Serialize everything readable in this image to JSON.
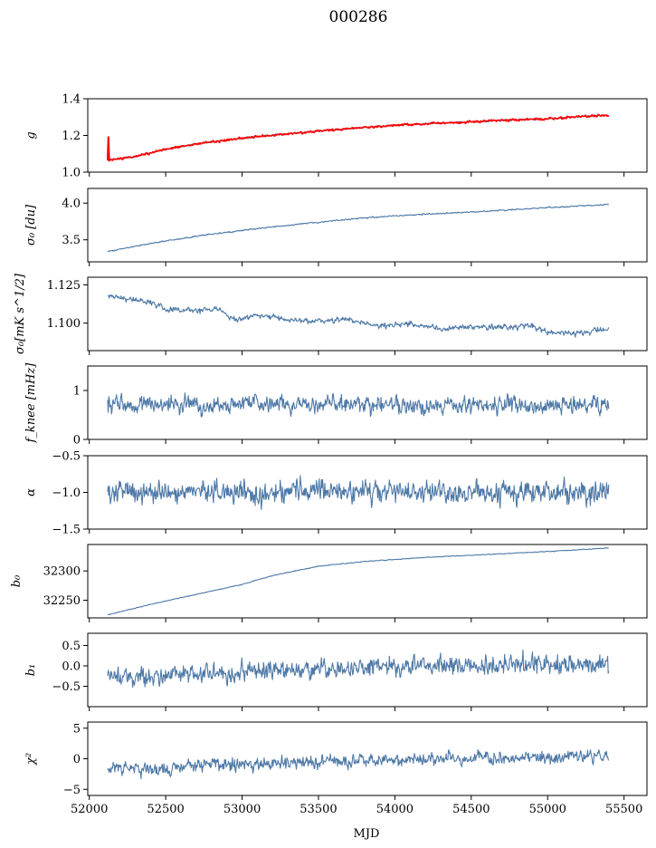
{
  "figure": {
    "title": "000286",
    "xlabel": "MJD"
  },
  "chart_data": [
    {
      "type": "line",
      "ylabel": "g",
      "ylim": [
        1.0,
        1.4
      ],
      "yticks": [
        "1.0",
        "1.2",
        "1.4"
      ],
      "xlim": [
        51990,
        55650
      ],
      "series": [
        {
          "color": "#4e79a7",
          "x_start": 52120,
          "x_end": 55400,
          "points": [
            [
              52120,
              1.065
            ],
            [
              52300,
              1.085
            ],
            [
              52500,
              1.125
            ],
            [
              52750,
              1.16
            ],
            [
              53000,
              1.185
            ],
            [
              53250,
              1.205
            ],
            [
              53500,
              1.225
            ],
            [
              53750,
              1.24
            ],
            [
              54000,
              1.255
            ],
            [
              54250,
              1.265
            ],
            [
              54500,
              1.275
            ],
            [
              54750,
              1.285
            ],
            [
              55000,
              1.29
            ],
            [
              55250,
              1.305
            ],
            [
              55400,
              1.31
            ]
          ],
          "noise": 0.003
        },
        {
          "color": "#ff0000",
          "x_start": 52120,
          "x_end": 55400,
          "points": [
            [
              52120,
              1.065
            ],
            [
              52300,
              1.085
            ],
            [
              52500,
              1.125
            ],
            [
              52750,
              1.16
            ],
            [
              53000,
              1.185
            ],
            [
              53250,
              1.205
            ],
            [
              53500,
              1.225
            ],
            [
              53750,
              1.24
            ],
            [
              54000,
              1.255
            ],
            [
              54250,
              1.265
            ],
            [
              54500,
              1.275
            ],
            [
              54750,
              1.285
            ],
            [
              55000,
              1.29
            ],
            [
              55250,
              1.305
            ],
            [
              55400,
              1.31
            ]
          ],
          "noise": 0.004,
          "spike": [
            [
              52120,
              1.065
            ],
            [
              52125,
              1.195
            ],
            [
              52130,
              1.07
            ]
          ]
        }
      ]
    },
    {
      "type": "line",
      "ylabel": "σ₀ [du]",
      "ylim": [
        3.2,
        4.2
      ],
      "yticks": [
        "3.5",
        "4.0"
      ],
      "ytick_values": [
        3.5,
        4.0
      ],
      "xlim": [
        51990,
        55650
      ],
      "series": [
        {
          "color": "#4e79a7",
          "x_start": 52120,
          "x_end": 55400,
          "points": [
            [
              52120,
              3.34
            ],
            [
              52400,
              3.45
            ],
            [
              52700,
              3.55
            ],
            [
              53000,
              3.63
            ],
            [
              53400,
              3.72
            ],
            [
              53800,
              3.8
            ],
            [
              54200,
              3.85
            ],
            [
              54600,
              3.89
            ],
            [
              55000,
              3.94
            ],
            [
              55400,
              3.98
            ]
          ],
          "noise": 0.006
        }
      ]
    },
    {
      "type": "line",
      "ylabel": "σ₀[mK s^1/2]",
      "ylim": [
        1.082,
        1.13
      ],
      "yticks": [
        "1.100",
        "1.125"
      ],
      "ytick_values": [
        1.1,
        1.125
      ],
      "xlim": [
        51990,
        55650
      ],
      "series": [
        {
          "color": "#4e79a7",
          "x_start": 52120,
          "x_end": 55400,
          "points": [
            [
              52120,
              1.1175
            ],
            [
              52400,
              1.114
            ],
            [
              52500,
              1.109
            ],
            [
              52700,
              1.1085
            ],
            [
              52850,
              1.109
            ],
            [
              52950,
              1.102
            ],
            [
              53100,
              1.105
            ],
            [
              53300,
              1.102
            ],
            [
              53500,
              1.101
            ],
            [
              53700,
              1.1025
            ],
            [
              53900,
              1.098
            ],
            [
              54100,
              1.1
            ],
            [
              54300,
              1.096
            ],
            [
              54500,
              1.0975
            ],
            [
              54700,
              1.097
            ],
            [
              54900,
              1.098
            ],
            [
              55000,
              1.094
            ],
            [
              55200,
              1.0935
            ],
            [
              55400,
              1.096
            ]
          ],
          "noise": 0.0012
        }
      ]
    },
    {
      "type": "line",
      "ylabel": "f_knee [mHz]",
      "ylim": [
        0,
        1.5
      ],
      "yticks": [
        "0",
        "1"
      ],
      "ytick_values": [
        0,
        1
      ],
      "xlim": [
        51990,
        55650
      ],
      "series": [
        {
          "color": "#4e79a7",
          "x_start": 52120,
          "x_end": 55400,
          "points": [
            [
              52120,
              0.7
            ],
            [
              55400,
              0.7
            ]
          ],
          "noise": 0.12
        }
      ]
    },
    {
      "type": "line",
      "ylabel": "α",
      "ylim": [
        -1.5,
        -0.5
      ],
      "yticks": [
        "−1.5",
        "−1.0",
        "−0.5"
      ],
      "ytick_values": [
        -1.5,
        -1.0,
        -0.5
      ],
      "xlim": [
        51990,
        55650
      ],
      "series": [
        {
          "color": "#4e79a7",
          "x_start": 52120,
          "x_end": 55400,
          "points": [
            [
              52120,
              -1.0
            ],
            [
              55400,
              -1.0
            ]
          ],
          "noise": 0.1
        }
      ]
    },
    {
      "type": "line",
      "ylabel": "b₀",
      "ylim": [
        32220,
        32345
      ],
      "yticks": [
        "32250",
        "32300"
      ],
      "ytick_values": [
        32250,
        32300
      ],
      "xlim": [
        51990,
        55650
      ],
      "series": [
        {
          "color": "#4e79a7",
          "x_start": 52120,
          "x_end": 55400,
          "points": [
            [
              52120,
              32225
            ],
            [
              52400,
              32243
            ],
            [
              52700,
              32260
            ],
            [
              53000,
              32277
            ],
            [
              53200,
              32292
            ],
            [
              53500,
              32308
            ],
            [
              53800,
              32316
            ],
            [
              54200,
              32323
            ],
            [
              54600,
              32328
            ],
            [
              55000,
              32333
            ],
            [
              55400,
              32339
            ]
          ],
          "noise": 0.4
        }
      ]
    },
    {
      "type": "line",
      "ylabel": "b₁",
      "ylim": [
        -1.0,
        0.8
      ],
      "yticks": [
        "−0.5",
        "0.0",
        "0.5"
      ],
      "ytick_values": [
        -0.5,
        0.0,
        0.5
      ],
      "xlim": [
        51990,
        55650
      ],
      "series": [
        {
          "color": "#4e79a7",
          "x_start": 52120,
          "x_end": 55400,
          "points": [
            [
              52120,
              -0.3
            ],
            [
              52800,
              -0.18
            ],
            [
              53500,
              -0.08
            ],
            [
              54200,
              0.0
            ],
            [
              54800,
              0.03
            ],
            [
              55400,
              0.05
            ]
          ],
          "noise": 0.16
        }
      ]
    },
    {
      "type": "line",
      "ylabel": "χ²",
      "ylim": [
        -6,
        6
      ],
      "yticks": [
        "−5",
        "0",
        "5"
      ],
      "ytick_values": [
        -5,
        0,
        5
      ],
      "xticks": [
        "52000",
        "52500",
        "53000",
        "53500",
        "54000",
        "54500",
        "55000",
        "55500"
      ],
      "xtick_values": [
        52000,
        52500,
        53000,
        53500,
        54000,
        54500,
        55000,
        55500
      ],
      "xlim": [
        51990,
        55650
      ],
      "series": [
        {
          "color": "#4e79a7",
          "x_start": 52120,
          "x_end": 55400,
          "points": [
            [
              52120,
              -1.8
            ],
            [
              52800,
              -1.1
            ],
            [
              53500,
              -0.5
            ],
            [
              54200,
              -0.1
            ],
            [
              54800,
              0.1
            ],
            [
              55400,
              0.4
            ]
          ],
          "noise": 0.75
        }
      ]
    }
  ]
}
